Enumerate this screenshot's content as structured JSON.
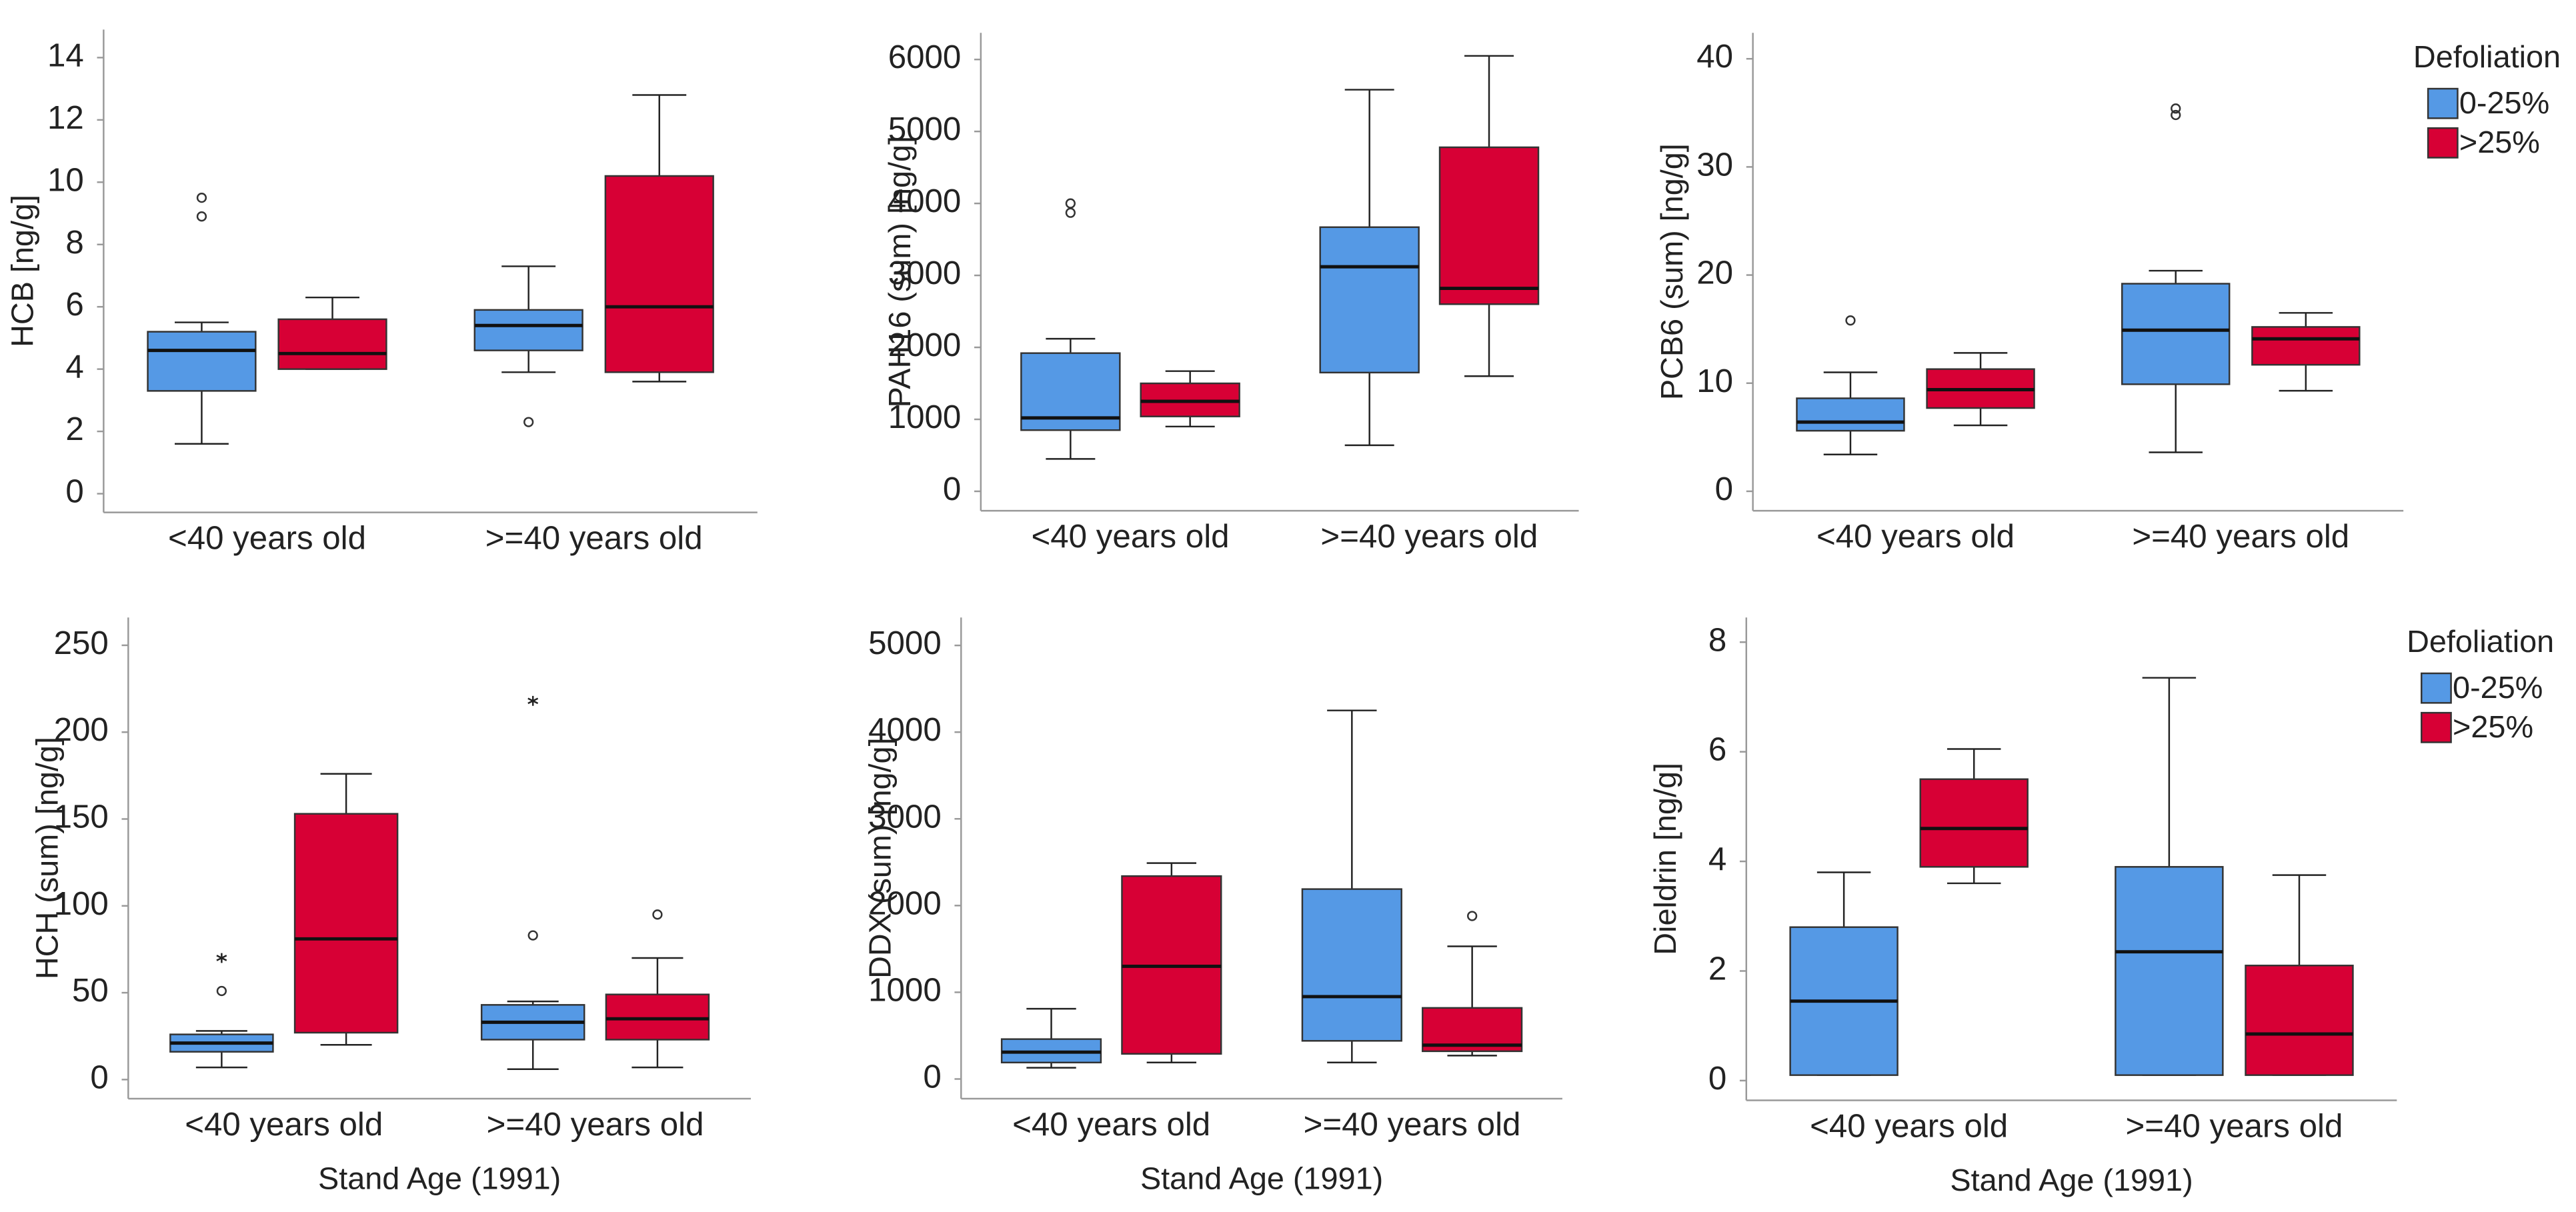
{
  "chart_data": [
    {
      "type": "box",
      "ylabel": "HCB [ng/g]",
      "categories": [
        "<40 years old",
        ">=40 years old"
      ],
      "ylim": [
        -0.6,
        14.9
      ],
      "yticks": [
        0,
        2,
        4,
        6,
        8,
        10,
        12,
        14
      ],
      "series": [
        {
          "color": "#5599e5",
          "boxes": [
            {
              "whislo": 1.6,
              "q1": 3.3,
              "med": 4.6,
              "q3": 5.2,
              "whishi": 5.5,
              "outliers": [
                8.9,
                9.5
              ],
              "extremes": []
            },
            {
              "whislo": 3.9,
              "q1": 4.6,
              "med": 5.4,
              "q3": 5.9,
              "whishi": 7.3,
              "outliers": [
                2.3
              ],
              "extremes": []
            }
          ]
        },
        {
          "color": "#d70035",
          "boxes": [
            {
              "whislo": 4.0,
              "q1": 4.0,
              "med": 4.5,
              "q3": 5.6,
              "whishi": 6.3,
              "outliers": [],
              "extremes": []
            },
            {
              "whislo": 3.6,
              "q1": 3.9,
              "med": 6.0,
              "q3": 10.2,
              "whishi": 12.8,
              "outliers": [],
              "extremes": []
            }
          ]
        }
      ]
    },
    {
      "type": "box",
      "ylabel": "PAH16 (sum) [ng/g]",
      "categories": [
        "<40 years old",
        ">=40 years old"
      ],
      "ylim": [
        -270,
        6370
      ],
      "yticks": [
        0,
        1000,
        2000,
        3000,
        4000,
        5000,
        6000
      ],
      "series": [
        {
          "color": "#5599e5",
          "boxes": [
            {
              "whislo": 450,
              "q1": 850,
              "med": 1020,
              "q3": 1920,
              "whishi": 2120,
              "outliers": [
                3870,
                4000
              ],
              "extremes": []
            },
            {
              "whislo": 640,
              "q1": 1650,
              "med": 3120,
              "q3": 3670,
              "whishi": 5580,
              "outliers": [],
              "extremes": []
            }
          ]
        },
        {
          "color": "#d70035",
          "boxes": [
            {
              "whislo": 900,
              "q1": 1040,
              "med": 1250,
              "q3": 1500,
              "whishi": 1670,
              "outliers": [],
              "extremes": []
            },
            {
              "whislo": 1600,
              "q1": 2600,
              "med": 2820,
              "q3": 4780,
              "whishi": 6050,
              "outliers": [],
              "extremes": []
            }
          ]
        }
      ]
    },
    {
      "type": "box",
      "ylabel": "PCB6 (sum) [ng/g]",
      "categories": [
        "<40 years old",
        ">=40 years old"
      ],
      "ylim": [
        -1.8,
        42.4
      ],
      "yticks": [
        0,
        10,
        20,
        30,
        40
      ],
      "legend_title": "Defoliation",
      "series": [
        {
          "name": "0-25%",
          "color": "#5599e5",
          "boxes": [
            {
              "whislo": 3.4,
              "q1": 5.6,
              "med": 6.4,
              "q3": 8.6,
              "whishi": 11.0,
              "outliers": [
                15.8
              ],
              "extremes": []
            },
            {
              "whislo": 3.6,
              "q1": 9.9,
              "med": 14.9,
              "q3": 19.2,
              "whishi": 20.4,
              "outliers": [
                34.8,
                35.4
              ],
              "extremes": []
            }
          ]
        },
        {
          "name": ">25%",
          "color": "#d70035",
          "boxes": [
            {
              "whislo": 6.1,
              "q1": 7.7,
              "med": 9.4,
              "q3": 11.3,
              "whishi": 12.8,
              "outliers": [],
              "extremes": []
            },
            {
              "whislo": 9.3,
              "q1": 11.7,
              "med": 14.1,
              "q3": 15.2,
              "whishi": 16.5,
              "outliers": [],
              "extremes": []
            }
          ]
        }
      ]
    },
    {
      "type": "box",
      "ylabel": "HCH (sum) [ng/g]",
      "xlabel": "Stand Age (1991)",
      "categories": [
        "<40 years old",
        ">=40 years old"
      ],
      "ylim": [
        -11,
        266
      ],
      "yticks": [
        0,
        50,
        100,
        150,
        200,
        250
      ],
      "series": [
        {
          "color": "#5599e5",
          "boxes": [
            {
              "whislo": 7,
              "q1": 16,
              "med": 21,
              "q3": 26,
              "whishi": 28,
              "outliers": [
                51
              ],
              "extremes": [
                70
              ]
            },
            {
              "whislo": 6,
              "q1": 23,
              "med": 33,
              "q3": 43,
              "whishi": 45,
              "outliers": [
                83
              ],
              "extremes": [
                218
              ]
            }
          ]
        },
        {
          "color": "#d70035",
          "boxes": [
            {
              "whislo": 20,
              "q1": 27,
              "med": 81,
              "q3": 153,
              "whishi": 176,
              "outliers": [],
              "extremes": []
            },
            {
              "whislo": 7,
              "q1": 23,
              "med": 35,
              "q3": 49,
              "whishi": 70,
              "outliers": [
                95
              ],
              "extremes": []
            }
          ]
        }
      ]
    },
    {
      "type": "box",
      "ylabel": "DDX (sum) [ng/g]",
      "xlabel": "Stand Age (1991)",
      "categories": [
        "<40 years old",
        ">=40 years old"
      ],
      "ylim": [
        -227,
        5322
      ],
      "yticks": [
        0,
        1000,
        2000,
        3000,
        4000,
        5000
      ],
      "series": [
        {
          "color": "#5599e5",
          "boxes": [
            {
              "whislo": 130,
              "q1": 190,
              "med": 310,
              "q3": 460,
              "whishi": 810,
              "outliers": [],
              "extremes": []
            },
            {
              "whislo": 190,
              "q1": 440,
              "med": 950,
              "q3": 2190,
              "whishi": 4250,
              "outliers": [],
              "extremes": []
            }
          ]
        },
        {
          "color": "#d70035",
          "boxes": [
            {
              "whislo": 190,
              "q1": 290,
              "med": 1300,
              "q3": 2340,
              "whishi": 2490,
              "outliers": [],
              "extremes": []
            },
            {
              "whislo": 270,
              "q1": 320,
              "med": 390,
              "q3": 820,
              "whishi": 1530,
              "outliers": [
                1880
              ],
              "extremes": []
            }
          ]
        }
      ]
    },
    {
      "type": "box",
      "ylabel": "Dieldrin [ng/g]",
      "xlabel": "Stand Age (1991)",
      "categories": [
        "<40 years old",
        ">=40 years old"
      ],
      "ylim": [
        -0.36,
        8.45
      ],
      "yticks": [
        0,
        2,
        4,
        6,
        8
      ],
      "legend_title": "Defoliation",
      "series": [
        {
          "name": "0-25%",
          "color": "#5599e5",
          "boxes": [
            {
              "whislo": 0.1,
              "q1": 0.1,
              "med": 1.45,
              "q3": 2.8,
              "whishi": 3.8,
              "outliers": [],
              "extremes": []
            },
            {
              "whislo": 0.1,
              "q1": 0.1,
              "med": 2.35,
              "q3": 3.9,
              "whishi": 7.35,
              "outliers": [],
              "extremes": []
            }
          ]
        },
        {
          "name": ">25%",
          "color": "#d70035",
          "boxes": [
            {
              "whislo": 3.6,
              "q1": 3.9,
              "med": 4.6,
              "q3": 5.5,
              "whishi": 6.05,
              "outliers": [],
              "extremes": []
            },
            {
              "whislo": 0.1,
              "q1": 0.1,
              "med": 0.85,
              "q3": 2.1,
              "whishi": 3.75,
              "outliers": [],
              "extremes": []
            }
          ]
        }
      ]
    }
  ]
}
